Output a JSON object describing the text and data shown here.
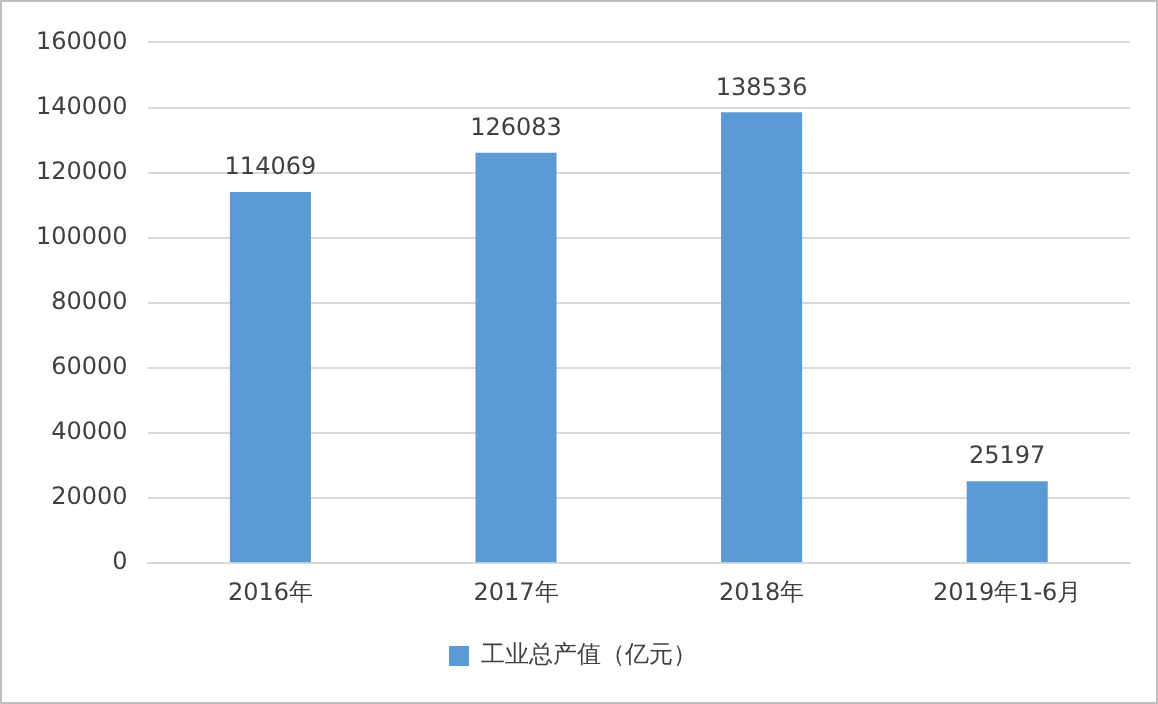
{
  "chart_data": {
    "type": "bar",
    "categories": [
      "2016年",
      "2017年",
      "2018年",
      "2019年1-6月"
    ],
    "series": [
      {
        "name": "工业总产值（亿元）",
        "color": "#5b9bd5",
        "values": [
          114069,
          126083,
          138536,
          25197
        ]
      }
    ],
    "ylim": [
      0,
      160000
    ],
    "yticks": [
      0,
      20000,
      40000,
      60000,
      80000,
      100000,
      120000,
      140000,
      160000
    ],
    "grid": "y",
    "legend": "bottom",
    "data_labels": true
  }
}
